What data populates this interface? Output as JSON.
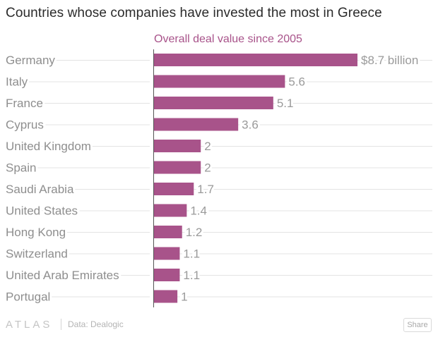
{
  "title": "Countries whose companies have invested the most in Greece",
  "footer": {
    "logo": "ATLAS",
    "source": "Data: Dealogic",
    "share_label": "Share"
  },
  "colors": {
    "bar": "#a8538a",
    "subtitle": "#a8538a",
    "category_text": "#8e8e8e",
    "value_text": "#9a9a9a",
    "gridline": "#e3e3e3",
    "axis": "#555555"
  },
  "chart_data": {
    "type": "bar",
    "orientation": "horizontal",
    "subtitle": "Overall deal value since 2005",
    "categories": [
      "Germany",
      "Italy",
      "France",
      "Cyprus",
      "United Kingdom",
      "Spain",
      "Saudi Arabia",
      "United States",
      "Hong Kong",
      "Switzerland",
      "United Arab Emirates",
      "Portugal"
    ],
    "values": [
      8.7,
      5.6,
      5.1,
      3.6,
      2,
      2,
      1.7,
      1.4,
      1.2,
      1.1,
      1.1,
      1
    ],
    "value_labels": [
      "$8.7 billion",
      "5.6",
      "5.1",
      "3.6",
      "2",
      "2",
      "1.7",
      "1.4",
      "1.2",
      "1.1",
      "1.1",
      "1"
    ],
    "xlim": [
      0,
      8.7
    ],
    "grid": true,
    "legend": "none"
  }
}
